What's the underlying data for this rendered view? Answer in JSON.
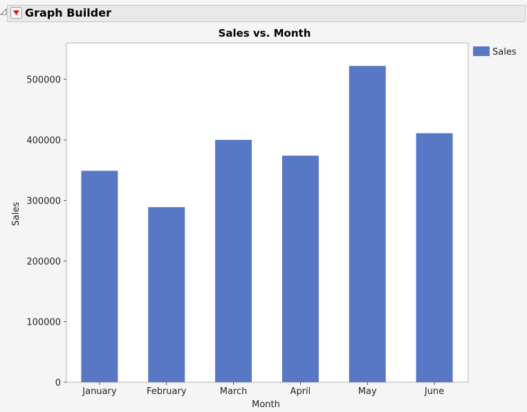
{
  "app": {
    "title": "Graph Builder"
  },
  "colors": {
    "bar": "#5878c6",
    "plot_bg": "#ffffff",
    "plot_border": "#b5b5b5"
  },
  "icons": {
    "menu": "red-triangle-dropdown-icon",
    "disclosure": "disclosure-triangle-icon"
  },
  "chart_data": {
    "type": "bar",
    "title": "Sales vs. Month",
    "xlabel": "Month",
    "ylabel": "Sales",
    "categories": [
      "January",
      "February",
      "March",
      "April",
      "May",
      "June"
    ],
    "series": [
      {
        "name": "Sales",
        "values": [
          349000,
          289000,
          400000,
          374000,
          522000,
          411000
        ]
      }
    ],
    "ylim": [
      0,
      560000
    ],
    "yticks": [
      0,
      100000,
      200000,
      300000,
      400000,
      500000
    ],
    "ytick_labels": [
      "0",
      "100000",
      "200000",
      "300000",
      "400000",
      "500000"
    ],
    "grid": false,
    "legend": "top-right-outside"
  }
}
